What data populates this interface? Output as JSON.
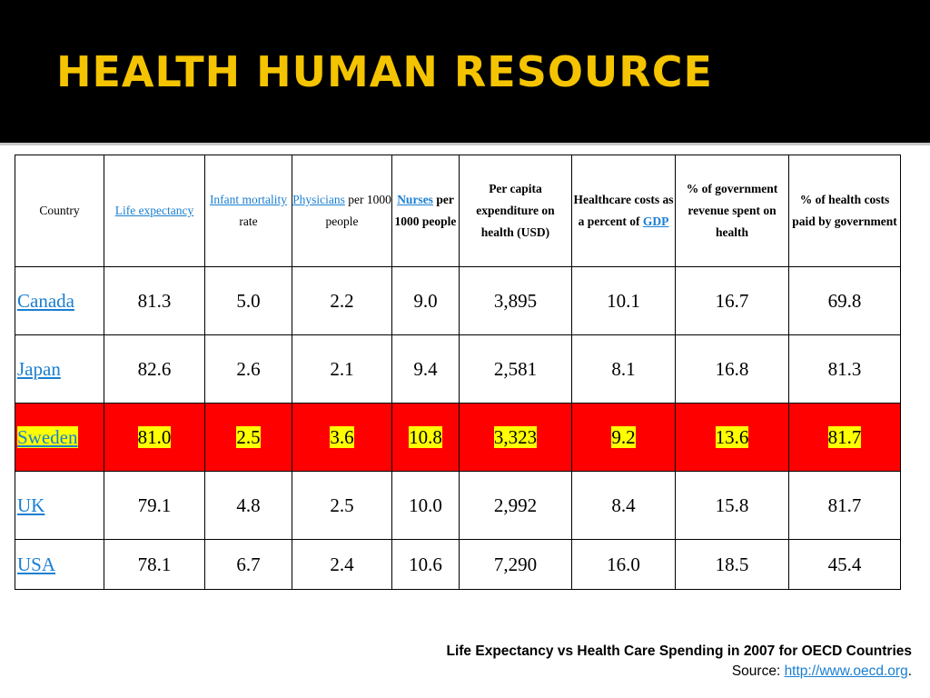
{
  "title": "HEALTH HUMAN RESOURCE",
  "table": {
    "headers": {
      "country": "Country",
      "life_link": "Life expectancy",
      "infant_link": "Infant mortality",
      "infant_rest": " rate",
      "physicians_link": "Physicians",
      "physicians_rest": " per 1000 people",
      "nurses_link": "Nurses",
      "nurses_rest": " per 1000 people",
      "per_capita": "Per capita expenditure on health (USD)",
      "healthcare_text": "Healthcare costs as a percent of ",
      "healthcare_link": "GDP",
      "gov_revenue": "% of government revenue spent on health",
      "health_costs_paid": "% of health costs paid by government"
    },
    "rows": [
      {
        "country": "Canada",
        "values": [
          "81.3",
          "5.0",
          "2.2",
          "9.0",
          "3,895",
          "10.1",
          "16.7",
          "69.8"
        ]
      },
      {
        "country": "Japan",
        "values": [
          "82.6",
          "2.6",
          "2.1",
          "9.4",
          "2,581",
          "8.1",
          "16.8",
          "81.3"
        ]
      },
      {
        "country": "Sweden",
        "values": [
          "81.0",
          "2.5",
          "3.6",
          "10.8",
          "3,323",
          "9.2",
          "13.6",
          "81.7"
        ]
      },
      {
        "country": "UK",
        "values": [
          "79.1",
          "4.8",
          "2.5",
          "10.0",
          "2,992",
          "8.4",
          "15.8",
          "81.7"
        ]
      },
      {
        "country": "USA",
        "values": [
          "78.1",
          "6.7",
          "2.4",
          "10.6",
          "7,290",
          "16.0",
          "18.5",
          "45.4"
        ]
      }
    ],
    "highlight_color": "#ff0000",
    "highlight_text_bg": "#ffff00"
  },
  "caption": {
    "line1": "Life Expectancy vs Health Care Spending in 2007 for OECD Countries",
    "source_label": "Source: ",
    "source_link": "http://www.oecd.org",
    "source_end": "."
  }
}
